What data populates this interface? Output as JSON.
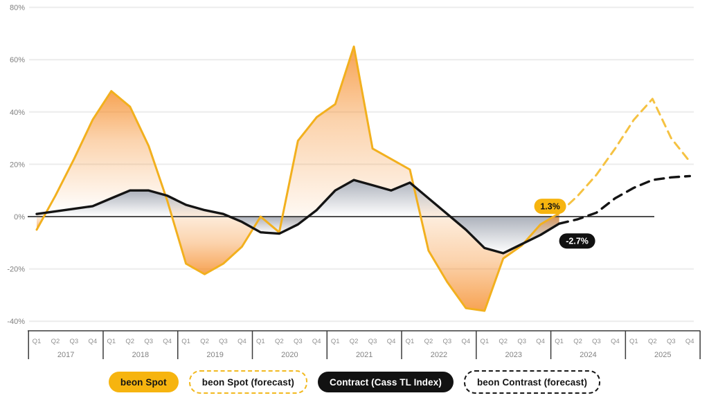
{
  "chart": {
    "background": "#ffffff",
    "colors": {
      "spot": "#F2B01E",
      "spot_forecast": "#F5C242",
      "contract": "#141414",
      "band_orange": "#F58C28",
      "band_gray": "#5A6478",
      "grid": "#ECECEC",
      "zero_line": "#4D4D4D",
      "axis_line": "#3A3A3A",
      "tick_text": "#7F7F7F",
      "quarter_text": "#8F8F8F",
      "year_text": "#828282",
      "badge_yellow_bg": "#F6B40F",
      "badge_yellow_text": "#111111",
      "badge_black_bg": "#111111",
      "badge_black_text": "#ffffff"
    },
    "y_axis": {
      "tick_labels": [
        "80%",
        "60%",
        "40%",
        "20%",
        "0%",
        "-20%",
        "-40%"
      ],
      "tick_values": [
        80,
        60,
        40,
        20,
        0,
        -20,
        -40
      ]
    }
  },
  "chart_data": {
    "type": "line",
    "title": "",
    "years": [
      "2017",
      "2018",
      "2019",
      "2020",
      "2021",
      "2022",
      "2023",
      "2024",
      "2025"
    ],
    "quarters": [
      "Q1",
      "Q2",
      "Q3",
      "Q4"
    ],
    "ylim": [
      -40,
      80
    ],
    "y_unit": "%",
    "grid": "horizontal",
    "legend_position": "bottom",
    "series": [
      {
        "name": "beon Spot",
        "style": "solid",
        "color": "#F2B01E",
        "start_index": 0,
        "values": [
          -5,
          8,
          22,
          37,
          48,
          42,
          27,
          6,
          -18,
          -22,
          -18,
          -11.5,
          0,
          -6,
          29,
          38,
          43,
          65,
          26,
          22,
          18,
          -13,
          -25,
          -35,
          -36,
          -16,
          -11,
          -3,
          1.3
        ]
      },
      {
        "name": "beon Spot (forecast)",
        "style": "dashed",
        "color": "#F5C242",
        "start_index": 28,
        "values": [
          1.3,
          8,
          16,
          26,
          37,
          45,
          30,
          21
        ]
      },
      {
        "name": "Contract (Cass TL Index)",
        "style": "solid",
        "color": "#141414",
        "start_index": 0,
        "values": [
          1,
          2,
          3,
          4,
          7,
          10,
          10,
          8,
          4.5,
          2.5,
          1,
          -2,
          -6,
          -6.5,
          -3,
          2.5,
          10,
          14,
          12,
          10,
          13,
          7,
          1,
          -5,
          -12,
          -14,
          -10.5,
          -7,
          -2.7
        ]
      },
      {
        "name": "beon Contrast (forecast)",
        "style": "dashed",
        "color": "#141414",
        "start_index": 28,
        "values": [
          -2.7,
          -1,
          1.5,
          7,
          11,
          14,
          15,
          15.5
        ]
      }
    ],
    "annotations": [
      {
        "text": "1.3%",
        "x_index": 28,
        "value": 1.3,
        "theme": "yellow"
      },
      {
        "text": "-2.7%",
        "x_index": 28,
        "value": -2.7,
        "theme": "black"
      }
    ]
  },
  "legend": {
    "items": [
      {
        "label": "beon Spot",
        "variant": "solid-yellow"
      },
      {
        "label": "beon Spot (forecast)",
        "variant": "dashed-yellow"
      },
      {
        "label": "Contract (Cass TL Index)",
        "variant": "solid-black"
      },
      {
        "label": "beon Contrast (forecast)",
        "variant": "dashed-black"
      }
    ]
  }
}
